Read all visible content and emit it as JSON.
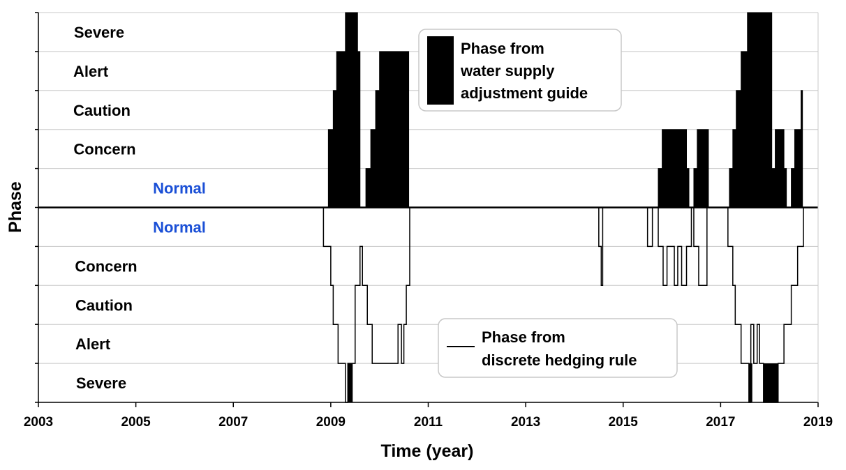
{
  "chart_data": {
    "type": "area",
    "title": "",
    "xlabel": "Time (year)",
    "ylabel": "Phase",
    "xlim": [
      2003,
      2019
    ],
    "ylim": [
      -5,
      5
    ],
    "x_ticks": [
      "2003",
      "2005",
      "2007",
      "2009",
      "2011",
      "2013",
      "2015",
      "2017",
      "2019"
    ],
    "grid": "horizontal",
    "colors": {
      "upper_fill": "#000000",
      "lower_line": "#000000",
      "normal_label": "#1a4fd6",
      "grid": "#c8c8c8"
    },
    "upper_phase_labels": [
      "Severe",
      "Alert",
      "Caution",
      "Concern",
      "Normal"
    ],
    "lower_phase_labels": [
      "Normal",
      "Concern",
      "Caution",
      "Alert",
      "Severe"
    ],
    "legends": [
      {
        "text_lines": [
          "Phase from",
          "water supply",
          "adjustment guide"
        ],
        "placement": "top-center"
      },
      {
        "text_lines": [
          "Phase from",
          "discrete hedging rule"
        ],
        "placement": "bottom-center"
      }
    ],
    "series": [
      {
        "name": "Phase from water supply adjustment guide",
        "style": "filled-step-above",
        "points": [
          [
            2003.0,
            0
          ],
          [
            2008.95,
            0
          ],
          [
            2008.95,
            2
          ],
          [
            2009.05,
            2
          ],
          [
            2009.05,
            3
          ],
          [
            2009.12,
            3
          ],
          [
            2009.12,
            4
          ],
          [
            2009.3,
            4
          ],
          [
            2009.3,
            5
          ],
          [
            2009.55,
            5
          ],
          [
            2009.55,
            4
          ],
          [
            2009.6,
            4
          ],
          [
            2009.6,
            0
          ],
          [
            2009.72,
            0
          ],
          [
            2009.72,
            1
          ],
          [
            2009.82,
            1
          ],
          [
            2009.82,
            2
          ],
          [
            2009.92,
            2
          ],
          [
            2009.92,
            3
          ],
          [
            2010.0,
            3
          ],
          [
            2010.0,
            4
          ],
          [
            2010.6,
            4
          ],
          [
            2010.6,
            0
          ],
          [
            2015.72,
            0
          ],
          [
            2015.72,
            1
          ],
          [
            2015.8,
            1
          ],
          [
            2015.8,
            2
          ],
          [
            2016.0,
            2
          ],
          [
            2016.0,
            2
          ],
          [
            2016.3,
            2
          ],
          [
            2016.3,
            1
          ],
          [
            2016.35,
            1
          ],
          [
            2016.35,
            0
          ],
          [
            2016.45,
            0
          ],
          [
            2016.45,
            1
          ],
          [
            2016.52,
            1
          ],
          [
            2016.52,
            2
          ],
          [
            2016.75,
            2
          ],
          [
            2016.75,
            0
          ],
          [
            2017.18,
            0
          ],
          [
            2017.18,
            1
          ],
          [
            2017.25,
            1
          ],
          [
            2017.25,
            2
          ],
          [
            2017.32,
            2
          ],
          [
            2017.32,
            3
          ],
          [
            2017.42,
            3
          ],
          [
            2017.42,
            4
          ],
          [
            2017.55,
            4
          ],
          [
            2017.55,
            5
          ],
          [
            2018.05,
            5
          ],
          [
            2018.05,
            1
          ],
          [
            2018.12,
            1
          ],
          [
            2018.12,
            2
          ],
          [
            2018.3,
            2
          ],
          [
            2018.3,
            1
          ],
          [
            2018.35,
            1
          ],
          [
            2018.35,
            0
          ],
          [
            2018.45,
            0
          ],
          [
            2018.45,
            1
          ],
          [
            2018.52,
            1
          ],
          [
            2018.52,
            2
          ],
          [
            2018.65,
            2
          ],
          [
            2018.65,
            3
          ],
          [
            2018.68,
            3
          ],
          [
            2018.68,
            0
          ],
          [
            2019.0,
            0
          ]
        ]
      },
      {
        "name": "Phase from discrete hedging rule",
        "style": "step-line-below",
        "points": [
          [
            2003.0,
            0
          ],
          [
            2008.85,
            0
          ],
          [
            2008.85,
            -1
          ],
          [
            2009.0,
            -1
          ],
          [
            2009.0,
            -2
          ],
          [
            2009.05,
            -2
          ],
          [
            2009.05,
            -3
          ],
          [
            2009.15,
            -3
          ],
          [
            2009.15,
            -4
          ],
          [
            2009.3,
            -4
          ],
          [
            2009.3,
            -5
          ],
          [
            2009.35,
            -5
          ],
          [
            2009.35,
            -4
          ],
          [
            2009.5,
            -4
          ],
          [
            2009.5,
            -2
          ],
          [
            2009.6,
            -2
          ],
          [
            2009.6,
            -1
          ],
          [
            2009.65,
            -1
          ],
          [
            2009.65,
            -2
          ],
          [
            2009.75,
            -2
          ],
          [
            2009.75,
            -3
          ],
          [
            2009.85,
            -3
          ],
          [
            2009.85,
            -4
          ],
          [
            2010.38,
            -4
          ],
          [
            2010.38,
            -3
          ],
          [
            2010.45,
            -3
          ],
          [
            2010.45,
            -4
          ],
          [
            2010.5,
            -4
          ],
          [
            2010.5,
            -3
          ],
          [
            2010.55,
            -3
          ],
          [
            2010.55,
            -2
          ],
          [
            2010.62,
            -2
          ],
          [
            2010.62,
            0
          ],
          [
            2014.5,
            0
          ],
          [
            2014.5,
            -1
          ],
          [
            2014.55,
            -1
          ],
          [
            2014.55,
            -2
          ],
          [
            2014.58,
            -2
          ],
          [
            2014.58,
            0
          ],
          [
            2015.5,
            0
          ],
          [
            2015.5,
            -1
          ],
          [
            2015.6,
            -1
          ],
          [
            2015.6,
            0
          ],
          [
            2015.72,
            0
          ],
          [
            2015.72,
            -1
          ],
          [
            2015.82,
            -1
          ],
          [
            2015.82,
            -2
          ],
          [
            2015.9,
            -2
          ],
          [
            2015.9,
            -1
          ],
          [
            2016.05,
            -1
          ],
          [
            2016.05,
            -2
          ],
          [
            2016.12,
            -2
          ],
          [
            2016.12,
            -1
          ],
          [
            2016.2,
            -1
          ],
          [
            2016.2,
            -2
          ],
          [
            2016.3,
            -2
          ],
          [
            2016.3,
            -1
          ],
          [
            2016.4,
            -1
          ],
          [
            2016.4,
            0
          ],
          [
            2016.45,
            0
          ],
          [
            2016.45,
            -1
          ],
          [
            2016.55,
            -1
          ],
          [
            2016.55,
            -2
          ],
          [
            2016.72,
            -2
          ],
          [
            2016.72,
            0
          ],
          [
            2017.15,
            0
          ],
          [
            2017.15,
            -1
          ],
          [
            2017.25,
            -1
          ],
          [
            2017.25,
            -2
          ],
          [
            2017.3,
            -2
          ],
          [
            2017.3,
            -3
          ],
          [
            2017.42,
            -3
          ],
          [
            2017.42,
            -4
          ],
          [
            2017.58,
            -4
          ],
          [
            2017.58,
            -5
          ],
          [
            2017.62,
            -5
          ],
          [
            2017.62,
            -3
          ],
          [
            2017.68,
            -3
          ],
          [
            2017.68,
            -4
          ],
          [
            2017.75,
            -4
          ],
          [
            2017.75,
            -3
          ],
          [
            2017.8,
            -3
          ],
          [
            2017.8,
            -4
          ],
          [
            2017.88,
            -4
          ],
          [
            2017.88,
            -5
          ],
          [
            2018.18,
            -5
          ],
          [
            2018.18,
            -4
          ],
          [
            2018.3,
            -4
          ],
          [
            2018.3,
            -3
          ],
          [
            2018.45,
            -3
          ],
          [
            2018.45,
            -2
          ],
          [
            2018.58,
            -2
          ],
          [
            2018.58,
            -1
          ],
          [
            2018.7,
            -1
          ],
          [
            2018.7,
            0
          ],
          [
            2019.0,
            0
          ]
        ]
      }
    ]
  }
}
